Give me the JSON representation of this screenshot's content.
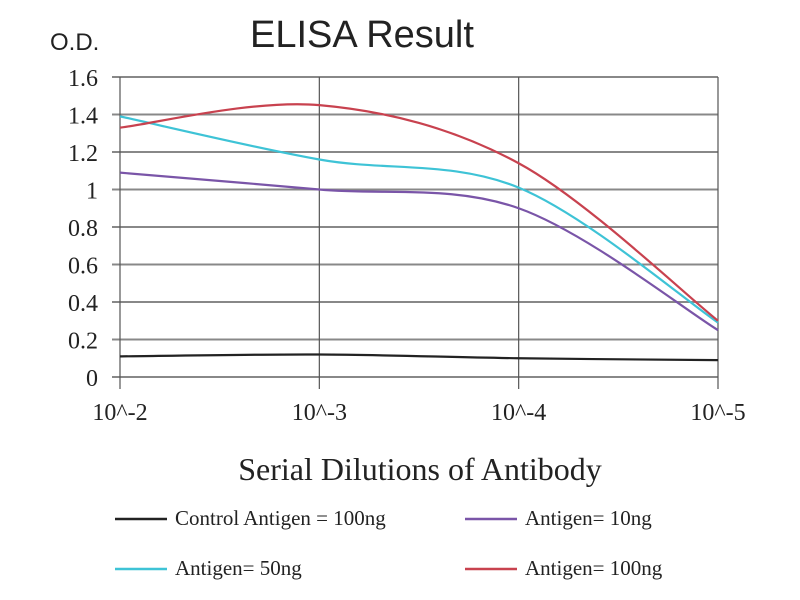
{
  "chart_data": {
    "type": "line",
    "title": "ELISA Result",
    "ylabel": "O.D.",
    "xlabel": "Serial Dilutions of Antibody",
    "categories": [
      "10^-2",
      "10^-3",
      "10^-4",
      "10^-5"
    ],
    "ylim": [
      0,
      1.6
    ],
    "yticks": [
      "0",
      "0.2",
      "0.4",
      "0.6",
      "0.8",
      "1",
      "1.2",
      "1.4",
      "1.6"
    ],
    "grid": true,
    "legend_placement": "bottom",
    "series": [
      {
        "name": "Control Antigen = 100ng",
        "color": "#222222",
        "values": [
          0.11,
          0.12,
          0.1,
          0.09
        ]
      },
      {
        "name": "Antigen= 10ng",
        "color": "#7a55a8",
        "values": [
          1.09,
          1.0,
          0.9,
          0.25
        ]
      },
      {
        "name": "Antigen= 50ng",
        "color": "#3ec3d6",
        "values": [
          1.39,
          1.16,
          1.01,
          0.29
        ]
      },
      {
        "name": "Antigen= 100ng",
        "color": "#c8424f",
        "values": [
          1.33,
          1.45,
          1.14,
          0.3
        ]
      }
    ]
  }
}
